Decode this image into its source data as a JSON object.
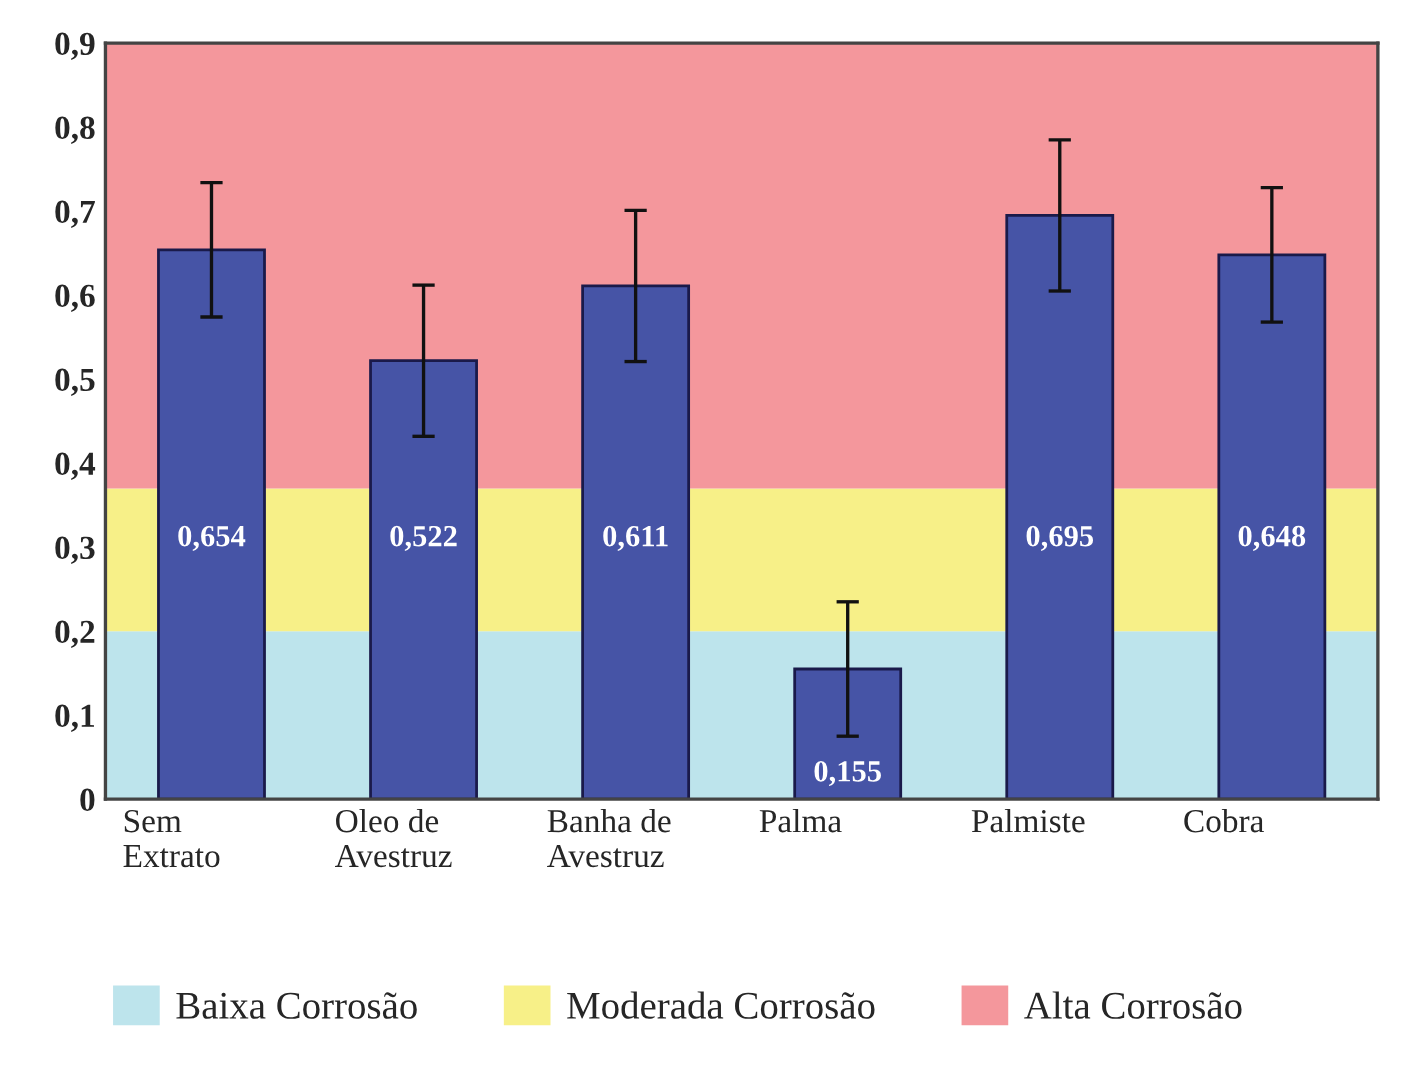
{
  "chart_data": {
    "type": "bar",
    "categories": [
      "Sem\nExtrato",
      "Oleo de\nAvestruz",
      "Banha de\nAvestruz",
      "Palma",
      "Palmiste",
      "Cobra"
    ],
    "values": [
      0.654,
      0.522,
      0.611,
      0.155,
      0.695,
      0.648
    ],
    "value_labels": [
      "0,654",
      "0,522",
      "0,611",
      "0,155",
      "0,695",
      "0,648"
    ],
    "errors": [
      0.08,
      0.09,
      0.09,
      0.08,
      0.09,
      0.08
    ],
    "color": "#4654a6",
    "ylim": [
      0,
      0.9
    ],
    "yticks": [
      0,
      {
        "value": 0.1,
        "label": "0,1"
      },
      {
        "value": 0.2,
        "label": "0,2"
      },
      {
        "value": 0.3,
        "label": "0,3"
      },
      {
        "value": 0.4,
        "label": "0,4"
      },
      {
        "value": 0.5,
        "label": "0,5"
      },
      {
        "value": 0.6,
        "label": "0,6"
      },
      {
        "value": 0.7,
        "label": "0,7"
      },
      {
        "value": 0.8,
        "label": "0,8"
      },
      {
        "value": 0.9,
        "label": "0,9"
      }
    ],
    "bands": [
      {
        "axis": "y",
        "from": 0,
        "to": 0.2,
        "label": "Baixa Corrosão",
        "color": "#bde4ec"
      },
      {
        "axis": "y",
        "from": 0.2,
        "to": 0.37,
        "label": "Moderada Corrosão",
        "color": "#f7f088"
      },
      {
        "axis": "y",
        "from": 0.37,
        "to": 0.9,
        "label": "Alta Corrosão",
        "color": "#f4979c"
      }
    ],
    "legend": "bottom",
    "grid": false
  }
}
